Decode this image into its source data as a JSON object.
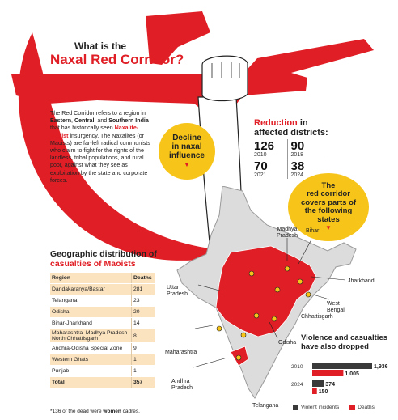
{
  "title": {
    "question": "What is the",
    "main": "Naxal Red Corridor?"
  },
  "intro": {
    "p1_a": "The Red Corridor refers to a region in ",
    "p1_b1": "Eastern",
    "p1_c": ", ",
    "p1_b2": "Central",
    "p1_d": ", and ",
    "p1_b3": "Southern India",
    "p1_e": " that has historically seen ",
    "p1_red": "Naxalite-Maoist",
    "p1_f": " insurgency. The Naxalites (or Maoists) are far-left radical communists who claim to fight for the rights of the landless, tribal populations, and rural poor, against what they see as exploitation by the state and corporate forces."
  },
  "decline_bubble": {
    "line1": "Decline",
    "line2": "in naxal",
    "line3": "influence"
  },
  "reduction": {
    "title_red": "Reduction",
    "title_rest1": " in",
    "title_rest2": "affected districts:",
    "items": [
      {
        "value": "126",
        "year": "2010"
      },
      {
        "value": "90",
        "year": "2018"
      },
      {
        "value": "70",
        "year": "2021"
      },
      {
        "value": "38",
        "year": "2024"
      }
    ]
  },
  "corridor_bubble": {
    "line1": "The",
    "line2": "red corridor",
    "line3": "covers parts of",
    "line4": "the following",
    "line5": "states"
  },
  "table": {
    "title_line1": "Geographic distribution of",
    "title_line2": "casualties of Maoists",
    "header": {
      "region": "Region",
      "deaths": "Deaths"
    },
    "rows": [
      {
        "region": "Dandakaranya/Bastar",
        "deaths": "281"
      },
      {
        "region": "Telangana",
        "deaths": "23"
      },
      {
        "region": "Odisha",
        "deaths": "20"
      },
      {
        "region": "Bihar-Jharkhand",
        "deaths": "14"
      },
      {
        "region": "Maharashtra–Madhya Pradesh-North Chhattisgarh",
        "deaths": "8"
      },
      {
        "region": "Andhra-Odisha Special Zone",
        "deaths": "9"
      },
      {
        "region": "Western Ghats",
        "deaths": "1"
      },
      {
        "region": "Punjab",
        "deaths": "1"
      }
    ],
    "total": {
      "region": "Total",
      "deaths": "357"
    }
  },
  "footnote": {
    "a": "*136 of the dead were ",
    "b": "women",
    "c": " cadres."
  },
  "map_labels": {
    "madhya_pradesh": "Madhya Pradesh",
    "bihar": "Bihar",
    "jharkhand": "Jharkhand",
    "west_bengal": "West Bengal",
    "chhattisgarh": "Chhattisgarh",
    "uttar_pradesh": "Uttar Pradesh",
    "maharashtra": "Maharashtra",
    "odisha": "Odisha",
    "andhra_pradesh": "Andhra Pradesh",
    "telangana": "Telangana"
  },
  "violence": {
    "title": "Violence and casualties have also dropped",
    "rows": [
      {
        "year": "2010",
        "incidents": 1936,
        "deaths": 1005,
        "incidents_label": "1,936",
        "deaths_label": "1,005"
      },
      {
        "year": "2024",
        "incidents": 374,
        "deaths": 150,
        "incidents_label": "374",
        "deaths_label": "150"
      }
    ],
    "legend_incidents": "Violent incidents",
    "legend_deaths": "Deaths"
  },
  "colors": {
    "red": "#e01e25",
    "yellow": "#f7c51a",
    "dark": "#3a3a3a",
    "peach": "#fbe3c0"
  }
}
